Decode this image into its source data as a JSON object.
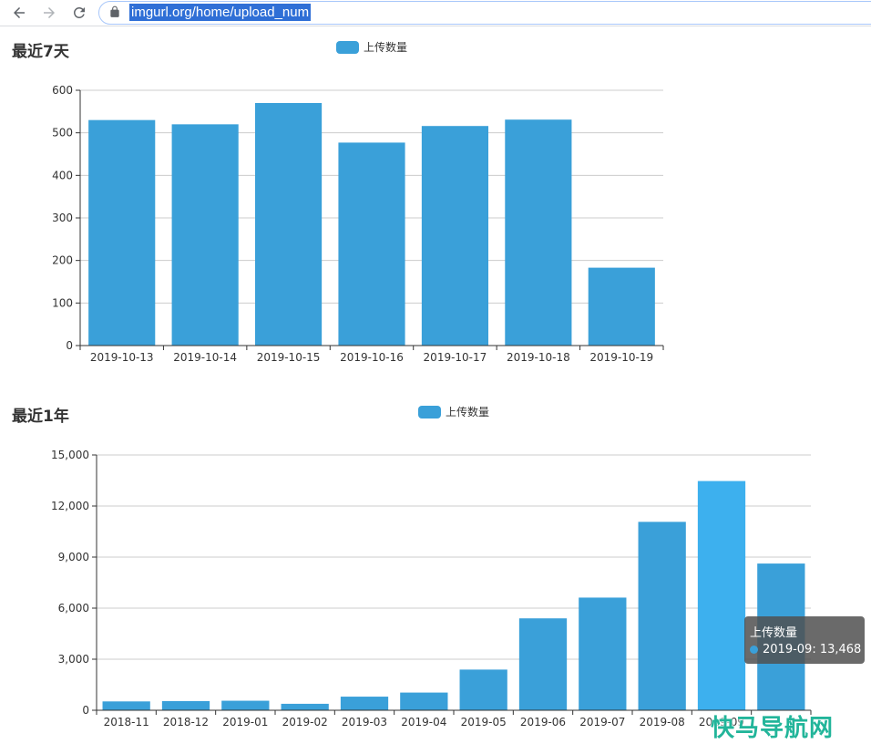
{
  "browser": {
    "url": "imgurl.org/home/upload_num",
    "icons": [
      "back-arrow-icon",
      "forward-arrow-icon",
      "reload-icon",
      "lock-icon"
    ]
  },
  "watermark": {
    "text": "快马导航网"
  },
  "tooltip": {
    "title": "上传数量",
    "text": "2019-09: 13,468"
  },
  "chart_data": [
    {
      "type": "bar",
      "title": "最近7天",
      "legend": "top-center",
      "grid": true,
      "categories": [
        "2019-10-13",
        "2019-10-14",
        "2019-10-15",
        "2019-10-16",
        "2019-10-17",
        "2019-10-18",
        "2019-10-19"
      ],
      "series": [
        {
          "name": "上传数量",
          "values": [
            530,
            520,
            570,
            477,
            516,
            531,
            183
          ],
          "color": "#3aa0d9"
        }
      ],
      "ylim": [
        0,
        600
      ],
      "yticks": [
        0,
        100,
        200,
        300,
        400,
        500,
        600
      ],
      "ytick_labels": [
        "0",
        "100",
        "200",
        "300",
        "400",
        "500",
        "600"
      ],
      "xlabel": "",
      "ylabel": ""
    },
    {
      "type": "bar",
      "title": "最近1年",
      "legend": "top-center",
      "grid": true,
      "categories": [
        "2018-11",
        "2018-12",
        "2019-01",
        "2019-02",
        "2019-03",
        "2019-04",
        "2019-05",
        "2019-06",
        "2019-07",
        "2019-08",
        "2019-09",
        "2019-10"
      ],
      "tick_labels": [
        "2018-11",
        "2018-12",
        "2019-01",
        "2019-02",
        "2019-03",
        "2019-04",
        "2019-05",
        "2019-06",
        "2019-07",
        "2019-08",
        "2019-09",
        ""
      ],
      "series": [
        {
          "name": "上传数量",
          "values": [
            520,
            540,
            560,
            380,
            800,
            1040,
            2390,
            5400,
            6620,
            11070,
            13468,
            8620
          ],
          "color": "#3aa0d9",
          "highlight_index": 10,
          "highlight_color": "#3db0ee"
        }
      ],
      "ylim": [
        0,
        15000
      ],
      "yticks": [
        0,
        3000,
        6000,
        9000,
        12000,
        15000
      ],
      "ytick_labels": [
        "0",
        "3,000",
        "6,000",
        "9,000",
        "12,000",
        "15,000"
      ],
      "xlabel": "",
      "ylabel": ""
    }
  ]
}
